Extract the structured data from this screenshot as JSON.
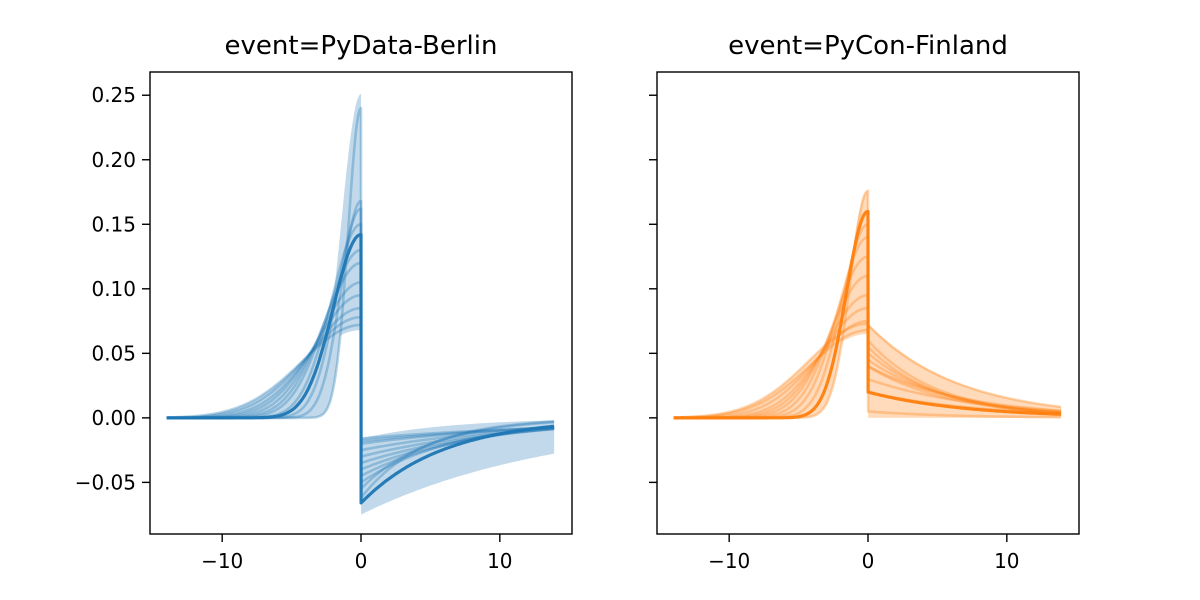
{
  "chart_data": [
    {
      "type": "line",
      "title": "event=PyData-Berlin",
      "color": "#1f77b4",
      "xlim": [
        -15.2,
        15.2
      ],
      "ylim": [
        -0.09,
        0.268
      ],
      "x_ticks": [
        -10,
        0,
        10
      ],
      "x_tick_labels": [
        "−10",
        "0",
        "10"
      ],
      "y_ticks": [
        -0.05,
        0.0,
        0.05,
        0.1,
        0.15,
        0.2,
        0.25
      ],
      "y_tick_labels": [
        "−0.05",
        "0.00",
        "0.05",
        "0.10",
        "0.15",
        "0.20",
        "0.25"
      ],
      "band": {
        "peak_min": 0.068,
        "peak_max": 0.251,
        "post_min": -0.075,
        "post_max": -0.016
      },
      "series": [
        {
          "peak": 0.142,
          "after": -0.066,
          "rise_width": 2.8,
          "decay_width": 6.0,
          "opacity": 0.95,
          "width": 3.2
        },
        {
          "peak": 0.168,
          "after": -0.055,
          "rise_width": 2.0,
          "decay_width": 5.0,
          "opacity": 0.32,
          "width": 2.6
        },
        {
          "peak": 0.162,
          "after": -0.05,
          "rise_width": 2.4,
          "decay_width": 7.0,
          "opacity": 0.32,
          "width": 2.6
        },
        {
          "peak": 0.15,
          "after": -0.045,
          "rise_width": 3.0,
          "decay_width": 8.0,
          "opacity": 0.32,
          "width": 2.6
        },
        {
          "peak": 0.13,
          "after": -0.04,
          "rise_width": 3.5,
          "decay_width": 9.0,
          "opacity": 0.32,
          "width": 2.6
        },
        {
          "peak": 0.12,
          "after": -0.035,
          "rise_width": 3.8,
          "decay_width": 10.0,
          "opacity": 0.32,
          "width": 2.6
        },
        {
          "peak": 0.105,
          "after": -0.03,
          "rise_width": 4.2,
          "decay_width": 11.0,
          "opacity": 0.32,
          "width": 2.6
        },
        {
          "peak": 0.095,
          "after": -0.025,
          "rise_width": 4.6,
          "decay_width": 12.0,
          "opacity": 0.32,
          "width": 2.6
        },
        {
          "peak": 0.085,
          "after": -0.02,
          "rise_width": 5.0,
          "decay_width": 14.0,
          "opacity": 0.32,
          "width": 2.6
        },
        {
          "peak": 0.078,
          "after": -0.018,
          "rise_width": 5.5,
          "decay_width": 16.0,
          "opacity": 0.32,
          "width": 2.6
        },
        {
          "peak": 0.072,
          "after": -0.016,
          "rise_width": 6.0,
          "decay_width": 18.0,
          "opacity": 0.32,
          "width": 2.6
        },
        {
          "peak": 0.24,
          "after": -0.062,
          "rise_width": 1.3,
          "decay_width": 4.5,
          "opacity": 0.32,
          "width": 2.6
        }
      ]
    },
    {
      "type": "line",
      "title": "event=PyCon-Finland",
      "color": "#ff7f0e",
      "xlim": [
        -15.2,
        15.2
      ],
      "ylim": [
        -0.09,
        0.268
      ],
      "x_ticks": [
        -10,
        0,
        10
      ],
      "x_tick_labels": [
        "−10",
        "0",
        "10"
      ],
      "y_ticks": [
        -0.05,
        0.0,
        0.05,
        0.1,
        0.15,
        0.2,
        0.25
      ],
      "y_tick_labels": [],
      "band": {
        "peak_min": 0.065,
        "peak_max": 0.176,
        "post_min": 0.0,
        "post_max": 0.073
      },
      "series": [
        {
          "peak": 0.16,
          "after": 0.02,
          "rise_width": 2.2,
          "decay_width": 7.0,
          "opacity": 0.95,
          "width": 3.2
        },
        {
          "peak": 0.176,
          "after": 0.005,
          "rise_width": 1.8,
          "decay_width": 6.0,
          "opacity": 0.32,
          "width": 2.6
        },
        {
          "peak": 0.15,
          "after": 0.02,
          "rise_width": 2.6,
          "decay_width": 8.0,
          "opacity": 0.32,
          "width": 2.6
        },
        {
          "peak": 0.14,
          "after": 0.03,
          "rise_width": 3.0,
          "decay_width": 8.0,
          "opacity": 0.32,
          "width": 2.6
        },
        {
          "peak": 0.125,
          "after": 0.04,
          "rise_width": 3.4,
          "decay_width": 7.0,
          "opacity": 0.32,
          "width": 2.6
        },
        {
          "peak": 0.11,
          "after": 0.045,
          "rise_width": 3.8,
          "decay_width": 6.0,
          "opacity": 0.32,
          "width": 2.6
        },
        {
          "peak": 0.095,
          "after": 0.05,
          "rise_width": 4.2,
          "decay_width": 5.5,
          "opacity": 0.32,
          "width": 2.6
        },
        {
          "peak": 0.085,
          "after": 0.055,
          "rise_width": 4.6,
          "decay_width": 5.0,
          "opacity": 0.32,
          "width": 2.6
        },
        {
          "peak": 0.075,
          "after": 0.06,
          "rise_width": 5.2,
          "decay_width": 5.0,
          "opacity": 0.32,
          "width": 2.6
        },
        {
          "peak": 0.068,
          "after": 0.04,
          "rise_width": 5.8,
          "decay_width": 6.0,
          "opacity": 0.32,
          "width": 2.6
        },
        {
          "peak": 0.073,
          "after": 0.072,
          "rise_width": 6.0,
          "decay_width": 6.5,
          "opacity": 0.32,
          "width": 2.6
        }
      ]
    }
  ]
}
